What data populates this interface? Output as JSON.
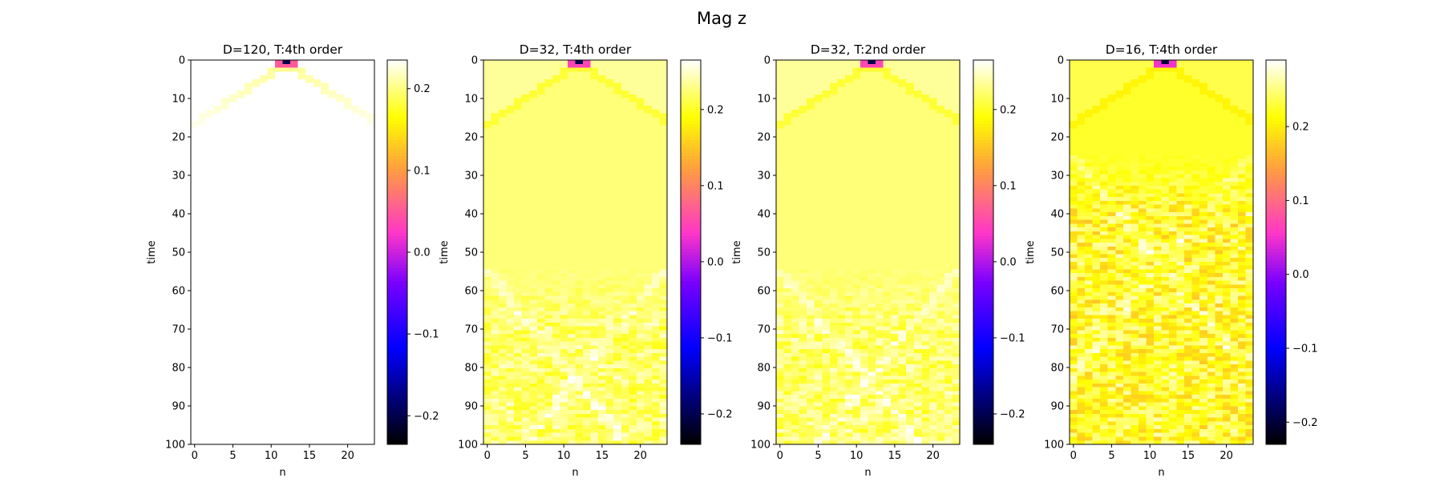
{
  "figure": {
    "suptitle": "Mag z"
  },
  "colormap": {
    "name": "gnuplot2",
    "stops": [
      {
        "t": 0.0,
        "color": "#000000"
      },
      {
        "t": 0.25,
        "color": "#0000ff"
      },
      {
        "t": 0.42,
        "color": "#7800ff"
      },
      {
        "t": 0.55,
        "color": "#ff36c8"
      },
      {
        "t": 0.72,
        "color": "#ffa03c"
      },
      {
        "t": 0.85,
        "color": "#ffff00"
      },
      {
        "t": 1.0,
        "color": "#ffffff"
      }
    ]
  },
  "chart_data": [
    {
      "type": "heatmap",
      "title": "D=120, T:4th order",
      "xlabel": "n",
      "ylabel": "time",
      "n_sites": 24,
      "n_steps": 101,
      "xlim": [
        -0.5,
        23.5
      ],
      "ylim": [
        100,
        0
      ],
      "xticks": [
        0,
        5,
        10,
        15,
        20
      ],
      "yticks": [
        0,
        10,
        20,
        30,
        40,
        50,
        60,
        70,
        80,
        90,
        100
      ],
      "colorbar": {
        "vmin": -0.235,
        "vmax": 0.235,
        "ticks": [
          -0.2,
          -0.1,
          0.0,
          0.1,
          0.2
        ],
        "tick_labels": [
          "−0.2",
          "−0.1",
          "0.0",
          "0.1",
          "0.2"
        ]
      },
      "field": {
        "background": 0.235,
        "init_value": -0.2,
        "init_site": 12,
        "front_speed": 0.75,
        "inner_value": 0.235,
        "front_value": 0.205,
        "noise": 0.0,
        "fade_rows": 40
      }
    },
    {
      "type": "heatmap",
      "title": "D=32, T:4th order",
      "xlabel": "n",
      "ylabel": "time",
      "n_sites": 24,
      "n_steps": 101,
      "xlim": [
        -0.5,
        23.5
      ],
      "ylim": [
        100,
        0
      ],
      "xticks": [
        0,
        5,
        10,
        15,
        20
      ],
      "yticks": [
        0,
        10,
        20,
        30,
        40,
        50,
        60,
        70,
        80,
        90,
        100
      ],
      "colorbar": {
        "vmin": -0.24,
        "vmax": 0.265,
        "ticks": [
          -0.2,
          -0.1,
          0.0,
          0.1,
          0.2
        ],
        "tick_labels": [
          "−0.2",
          "−0.1",
          "0.0",
          "0.1",
          "0.2"
        ]
      },
      "field": {
        "background": 0.235,
        "init_value": -0.2,
        "init_site": 12,
        "front_speed": 0.75,
        "inner_value": 0.225,
        "front_value": 0.205,
        "noise": 0.025,
        "noise_onset": 55
      }
    },
    {
      "type": "heatmap",
      "title": "D=32, T:2nd order",
      "xlabel": "n",
      "ylabel": "time",
      "n_sites": 24,
      "n_steps": 101,
      "xlim": [
        -0.5,
        23.5
      ],
      "ylim": [
        100,
        0
      ],
      "xticks": [
        0,
        5,
        10,
        15,
        20
      ],
      "yticks": [
        0,
        10,
        20,
        30,
        40,
        50,
        60,
        70,
        80,
        90,
        100
      ],
      "colorbar": {
        "vmin": -0.24,
        "vmax": 0.265,
        "ticks": [
          -0.2,
          -0.1,
          0.0,
          0.1,
          0.2
        ],
        "tick_labels": [
          "−0.2",
          "−0.1",
          "0.0",
          "0.1",
          "0.2"
        ]
      },
      "field": {
        "background": 0.235,
        "init_value": -0.2,
        "init_site": 12,
        "front_speed": 0.75,
        "inner_value": 0.225,
        "front_value": 0.205,
        "noise": 0.025,
        "noise_onset": 55
      }
    },
    {
      "type": "heatmap",
      "title": "D=16, T:4th order",
      "xlabel": "n",
      "ylabel": "time",
      "n_sites": 24,
      "n_steps": 101,
      "xlim": [
        -0.5,
        23.5
      ],
      "ylim": [
        100,
        0
      ],
      "xticks": [
        0,
        5,
        10,
        15,
        20
      ],
      "yticks": [
        0,
        10,
        20,
        30,
        40,
        50,
        60,
        70,
        80,
        90,
        100
      ],
      "colorbar": {
        "vmin": -0.23,
        "vmax": 0.29,
        "ticks": [
          -0.2,
          -0.1,
          0.0,
          0.1,
          0.2
        ],
        "tick_labels": [
          "−0.2",
          "−0.1",
          "0.0",
          "0.1",
          "0.2"
        ]
      },
      "field": {
        "background": 0.235,
        "init_value": -0.2,
        "init_site": 12,
        "front_speed": 0.75,
        "inner_value": 0.225,
        "front_value": 0.205,
        "noise": 0.045,
        "noise_onset": 25
      }
    }
  ]
}
